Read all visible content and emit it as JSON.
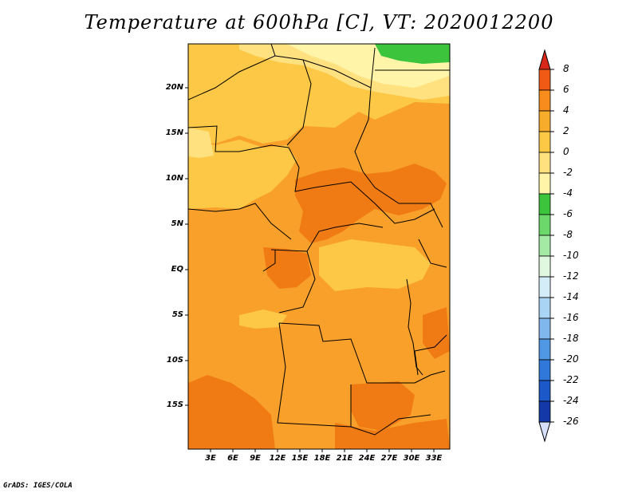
{
  "title": "Temperature at 600hPa [C], VT: 2020012200",
  "credit": "GrADS: IGES/COLA",
  "lat_labels": [
    "20N",
    "15N",
    "10N",
    "5N",
    "EQ",
    "5S",
    "10S",
    "15S"
  ],
  "lon_labels": [
    "3E",
    "6E",
    "9E",
    "12E",
    "15E",
    "18E",
    "21E",
    "24E",
    "27E",
    "30E",
    "33E"
  ],
  "colorbar": {
    "labels": [
      "8",
      "6",
      "4",
      "2",
      "0",
      "-2",
      "-4",
      "-6",
      "-8",
      "-10",
      "-12",
      "-14",
      "-16",
      "-18",
      "-20",
      "-22",
      "-24",
      "-26"
    ],
    "colors": [
      "#e02a10",
      "#f05a14",
      "#f88c1c",
      "#f8ac2c",
      "#fcc846",
      "#ffe180",
      "#fff4a8",
      "#3cc43c",
      "#6cd86c",
      "#a4eaa4",
      "#e0f8e0",
      "#d4ecf8",
      "#aad4f4",
      "#80b8ee",
      "#5098e4",
      "#3078da",
      "#1c58c8",
      "#1438a8",
      "#0c1c7c"
    ],
    "under_color": "#d6e0fa",
    "over_color": "#d8281a"
  },
  "palette": {
    "warm_fill": "#f8a02a",
    "hot_fill": "#f07a14",
    "mild_fill": "#fcc846",
    "cool_fill": "#ffe180",
    "cold_fill": "#fff4a8",
    "green_fill": "#3cc43c"
  }
}
